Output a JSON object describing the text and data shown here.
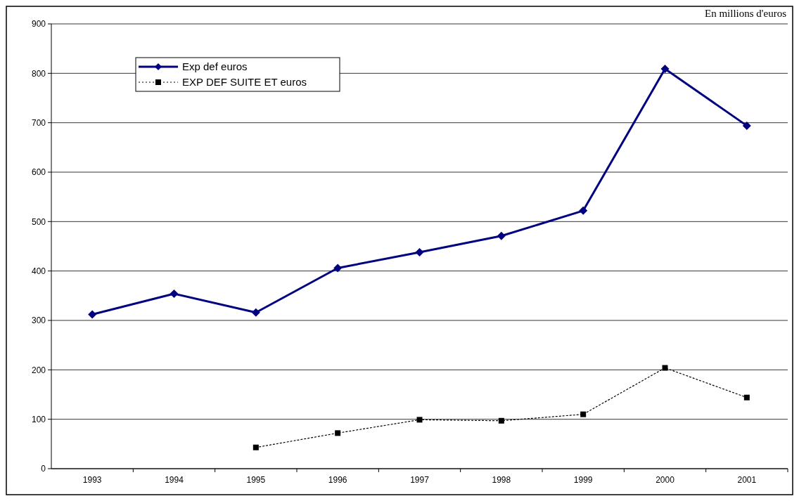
{
  "chart_data": {
    "type": "line",
    "annotations": [
      "En millions d'euros"
    ],
    "categories": [
      "1993",
      "1994",
      "1995",
      "1996",
      "1997",
      "1998",
      "1999",
      "2000",
      "2001"
    ],
    "series": [
      {
        "name": "Exp def euros",
        "color": "#000080",
        "marker": "diamond",
        "line_style": "solid",
        "values": [
          312,
          354,
          316,
          406,
          438,
          471,
          522,
          809,
          694
        ]
      },
      {
        "name": "EXP DEF SUITE ET euros",
        "color": "#000000",
        "marker": "square",
        "line_style": "dotted",
        "values": [
          null,
          null,
          43,
          72,
          99,
          97,
          110,
          204,
          144
        ]
      }
    ],
    "ylim": [
      0,
      900
    ],
    "yticks": [
      0,
      100,
      200,
      300,
      400,
      500,
      600,
      700,
      800,
      900
    ],
    "grid": "y",
    "legend": "top left"
  }
}
